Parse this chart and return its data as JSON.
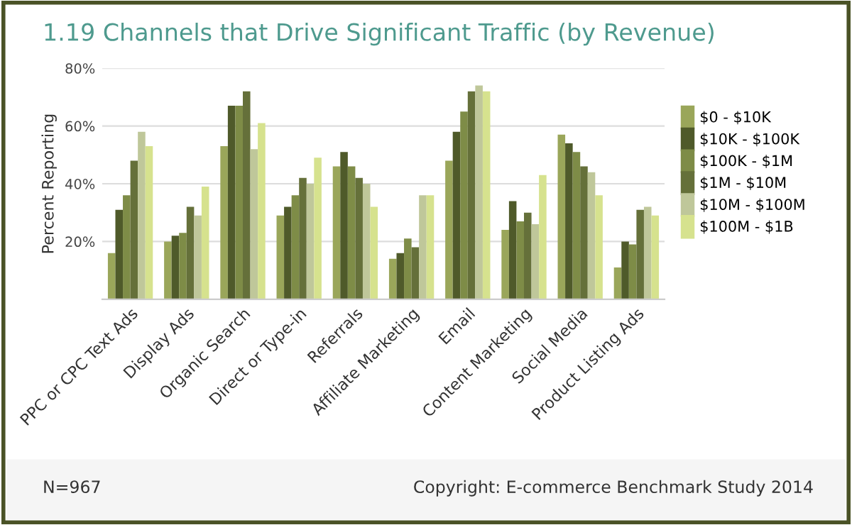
{
  "chart_data": {
    "type": "bar",
    "title": "1.19 Channels that Drive Significant Traffic (by Revenue)",
    "ylabel": "Percent Reporting",
    "categories": [
      "PPC or CPC Text Ads",
      "Display Ads",
      "Organic Search",
      "Direct or Type-in",
      "Referrals",
      "Affiliate Marketing",
      "Email",
      "Content Marketing",
      "Social Media",
      "Product Listing Ads"
    ],
    "series": [
      {
        "name": "$0 - $10K",
        "color": "#9aa65a",
        "values": [
          16,
          20,
          53,
          29,
          46,
          14,
          48,
          24,
          57,
          11
        ]
      },
      {
        "name": "$10K - $100K",
        "color": "#4f5a2a",
        "values": [
          31,
          22,
          67,
          32,
          51,
          16,
          58,
          34,
          54,
          20
        ]
      },
      {
        "name": "$100K - $1M",
        "color": "#7e8c47",
        "values": [
          36,
          23,
          67,
          36,
          46,
          21,
          65,
          27,
          51,
          19
        ]
      },
      {
        "name": "$1M - $10M",
        "color": "#65703a",
        "values": [
          48,
          32,
          72,
          42,
          42,
          18,
          72,
          30,
          46,
          31
        ]
      },
      {
        "name": "$10M - $100M",
        "color": "#bfc79a",
        "values": [
          58,
          29,
          52,
          40,
          40,
          36,
          74,
          26,
          44,
          32
        ]
      },
      {
        "name": "$100M - $1B",
        "color": "#d6e28e",
        "values": [
          53,
          39,
          61,
          49,
          32,
          36,
          72,
          43,
          36,
          29
        ]
      }
    ],
    "ylim": [
      0,
      80
    ],
    "yticks": [
      {
        "value": 20,
        "label": "20%"
      },
      {
        "value": 40,
        "label": "40%"
      },
      {
        "value": 60,
        "label": "60%"
      },
      {
        "value": 80,
        "label": "80%"
      }
    ],
    "grid": "y",
    "legend": "right",
    "annotations": [
      "N=967",
      "Copyright: E-commerce Benchmark Study 2014"
    ]
  }
}
